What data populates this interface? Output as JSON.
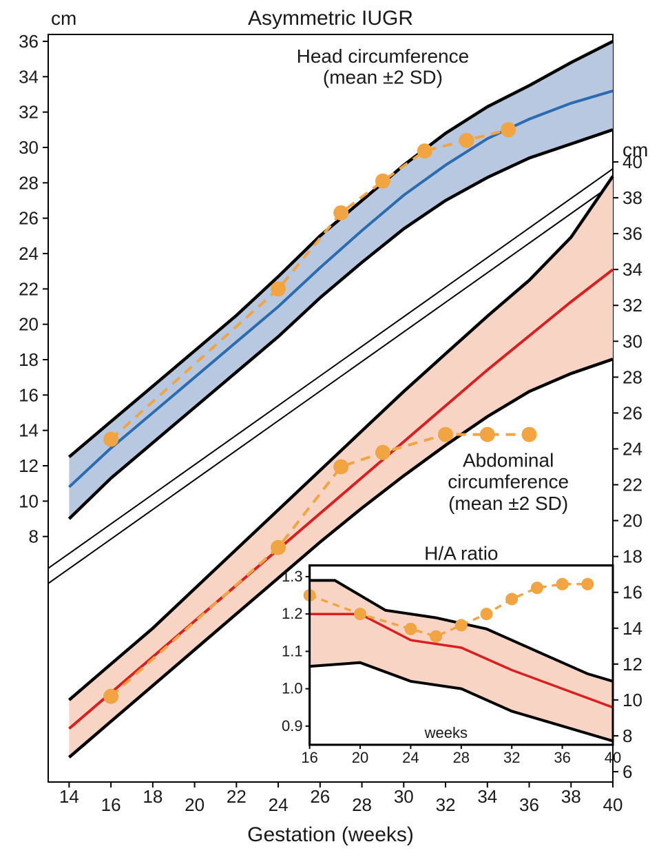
{
  "title": "Asymmetric IUGR",
  "xlabel": "Gestation (weeks)",
  "left_unit": "cm",
  "right_unit": "cm",
  "head_label_l1": "Head circumference",
  "head_label_l2": "(mean ±2 SD)",
  "abdo_label_l1": "Abdominal",
  "abdo_label_l2": "circumference",
  "abdo_label_l3": "(mean ±2 SD)",
  "inset_title": "H/A ratio",
  "inset_xlabel": "weeks",
  "colors": {
    "head_fill": "#b7c8e0",
    "head_line": "#2b6cb0",
    "abdo_fill": "#f7d4c4",
    "abdo_line": "#d92020",
    "band_border": "#000000",
    "patient": "#f0a442",
    "axis": "#000000",
    "bg": "#ffffff"
  },
  "stroke": {
    "band_border": 4.5,
    "mean_line": 4,
    "patient_line": 4,
    "patient_dash": "14 10",
    "marker_r": 11,
    "break_line": 2,
    "frame": 2
  },
  "fontsize": {
    "title": 30,
    "unit": 28,
    "axis_tick": 26,
    "label": 28,
    "xlabel": 30,
    "inset_tick": 22,
    "inset_title": 26
  },
  "left_axis": {
    "ticks": [
      8,
      10,
      12,
      14,
      16,
      18,
      20,
      22,
      24,
      26,
      28,
      30,
      32,
      34,
      36
    ]
  },
  "right_axis": {
    "ticks": [
      6,
      8,
      10,
      12,
      14,
      16,
      18,
      20,
      22,
      24,
      26,
      28,
      30,
      32,
      34,
      36,
      38,
      40
    ]
  },
  "x_axis": {
    "ticks": [
      14,
      16,
      18,
      20,
      22,
      24,
      26,
      28,
      30,
      32,
      34,
      36,
      38,
      40
    ]
  },
  "head": {
    "upper": [
      [
        14,
        12.5
      ],
      [
        16,
        14.5
      ],
      [
        18,
        16.5
      ],
      [
        20,
        18.5
      ],
      [
        22,
        20.5
      ],
      [
        24,
        22.7
      ],
      [
        26,
        25.0
      ],
      [
        28,
        27.0
      ],
      [
        30,
        29.0
      ],
      [
        32,
        30.8
      ],
      [
        34,
        32.3
      ],
      [
        36,
        33.5
      ],
      [
        38,
        34.8
      ],
      [
        40,
        36.0
      ]
    ],
    "mean": [
      [
        14,
        10.8
      ],
      [
        16,
        13.0
      ],
      [
        18,
        15.0
      ],
      [
        20,
        17.0
      ],
      [
        22,
        19.0
      ],
      [
        24,
        21.0
      ],
      [
        26,
        23.2
      ],
      [
        28,
        25.3
      ],
      [
        30,
        27.3
      ],
      [
        32,
        29.0
      ],
      [
        34,
        30.5
      ],
      [
        36,
        31.6
      ],
      [
        38,
        32.5
      ],
      [
        40,
        33.2
      ]
    ],
    "lower": [
      [
        14,
        9.0
      ],
      [
        16,
        11.3
      ],
      [
        18,
        13.3
      ],
      [
        20,
        15.3
      ],
      [
        22,
        17.3
      ],
      [
        24,
        19.3
      ],
      [
        26,
        21.5
      ],
      [
        28,
        23.5
      ],
      [
        30,
        25.4
      ],
      [
        32,
        27.0
      ],
      [
        34,
        28.3
      ],
      [
        36,
        29.4
      ],
      [
        38,
        30.2
      ],
      [
        40,
        31.0
      ]
    ]
  },
  "head_patient": [
    [
      16,
      13.5
    ],
    [
      24,
      22.0
    ],
    [
      27,
      26.3
    ],
    [
      29,
      28.1
    ],
    [
      31,
      29.8
    ],
    [
      33,
      30.4
    ],
    [
      35,
      31.0
    ]
  ],
  "abdo": {
    "upper": [
      [
        14,
        10.0
      ],
      [
        16,
        12.0
      ],
      [
        18,
        14.0
      ],
      [
        20,
        16.2
      ],
      [
        22,
        18.4
      ],
      [
        24,
        20.6
      ],
      [
        26,
        22.8
      ],
      [
        28,
        25.0
      ],
      [
        30,
        27.2
      ],
      [
        32,
        29.3
      ],
      [
        34,
        31.4
      ],
      [
        36,
        33.4
      ],
      [
        38,
        35.8
      ],
      [
        40,
        39.2
      ]
    ],
    "mean": [
      [
        14,
        8.4
      ],
      [
        16,
        10.4
      ],
      [
        18,
        12.4
      ],
      [
        20,
        14.4
      ],
      [
        22,
        16.4
      ],
      [
        24,
        18.4
      ],
      [
        26,
        20.4
      ],
      [
        28,
        22.4
      ],
      [
        30,
        24.4
      ],
      [
        32,
        26.4
      ],
      [
        34,
        28.4
      ],
      [
        36,
        30.3
      ],
      [
        38,
        32.2
      ],
      [
        40,
        34.0
      ]
    ],
    "lower": [
      [
        14,
        6.8
      ],
      [
        16,
        8.8
      ],
      [
        18,
        10.8
      ],
      [
        20,
        12.8
      ],
      [
        22,
        14.8
      ],
      [
        24,
        16.8
      ],
      [
        26,
        18.8
      ],
      [
        28,
        20.7
      ],
      [
        30,
        22.5
      ],
      [
        32,
        24.2
      ],
      [
        34,
        25.8
      ],
      [
        36,
        27.2
      ],
      [
        38,
        28.2
      ],
      [
        40,
        29.0
      ]
    ]
  },
  "abdo_patient": [
    [
      16,
      10.2
    ],
    [
      24,
      18.5
    ],
    [
      27,
      23.0
    ],
    [
      29,
      23.8
    ],
    [
      32,
      24.8
    ],
    [
      34,
      24.8
    ],
    [
      36,
      24.8
    ]
  ],
  "inset": {
    "xlim": [
      16,
      40
    ],
    "ylim": [
      0.85,
      1.33
    ],
    "xticks": [
      16,
      20,
      24,
      28,
      32,
      36,
      40
    ],
    "yticks": [
      0.9,
      1.0,
      1.1,
      1.2,
      1.3
    ],
    "upper": [
      [
        16,
        1.29
      ],
      [
        18,
        1.29
      ],
      [
        22,
        1.21
      ],
      [
        26,
        1.19
      ],
      [
        30,
        1.16
      ],
      [
        34,
        1.1
      ],
      [
        38,
        1.04
      ],
      [
        40,
        1.02
      ]
    ],
    "mean": [
      [
        16,
        1.2
      ],
      [
        20,
        1.2
      ],
      [
        24,
        1.13
      ],
      [
        28,
        1.11
      ],
      [
        32,
        1.05
      ],
      [
        36,
        1.0
      ],
      [
        40,
        0.95
      ]
    ],
    "lower": [
      [
        16,
        1.06
      ],
      [
        20,
        1.07
      ],
      [
        24,
        1.02
      ],
      [
        28,
        1.0
      ],
      [
        32,
        0.94
      ],
      [
        36,
        0.9
      ],
      [
        40,
        0.86
      ]
    ],
    "patient": [
      [
        16,
        1.25
      ],
      [
        20,
        1.2
      ],
      [
        24,
        1.16
      ],
      [
        26,
        1.14
      ],
      [
        28,
        1.17
      ],
      [
        30,
        1.2
      ],
      [
        32,
        1.24
      ],
      [
        34,
        1.27
      ],
      [
        36,
        1.28
      ],
      [
        38,
        1.28
      ]
    ]
  }
}
